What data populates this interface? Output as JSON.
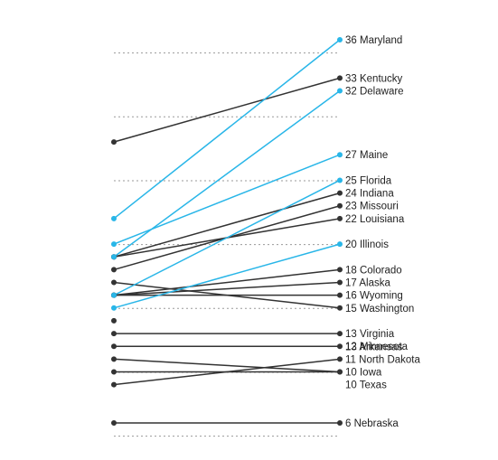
{
  "chart_data": {
    "type": "slope",
    "title": "",
    "xlabel": "",
    "ylabel": "",
    "ylim": [
      5,
      37
    ],
    "grid": {
      "style": "dotted",
      "horizontal": true
    },
    "series": [
      {
        "name": "Maryland",
        "start": 22,
        "end": 36,
        "color": "#29b6e8",
        "label": "36 Maryland"
      },
      {
        "name": "Kentucky",
        "start": 28,
        "end": 33,
        "color": "#333333",
        "label": "33 Kentucky"
      },
      {
        "name": "Delaware",
        "start": 19,
        "end": 32,
        "color": "#29b6e8",
        "label": "32 Delaware"
      },
      {
        "name": "Maine",
        "start": 20,
        "end": 27,
        "color": "#29b6e8",
        "label": "27 Maine"
      },
      {
        "name": "Florida",
        "start": 16,
        "end": 25,
        "color": "#29b6e8",
        "label": "25 Florida"
      },
      {
        "name": "Indiana",
        "start": 19,
        "end": 24,
        "color": "#333333",
        "label": "24 Indiana"
      },
      {
        "name": "Missouri",
        "start": 18,
        "end": 23,
        "color": "#333333",
        "label": "23 Missouri"
      },
      {
        "name": "Louisiana",
        "start": 19,
        "end": 22,
        "color": "#333333",
        "label": "22 Louisiana"
      },
      {
        "name": "Illinois",
        "start": 15,
        "end": 20,
        "color": "#29b6e8",
        "label": "20 Illinois"
      },
      {
        "name": "Colorado",
        "start": 16,
        "end": 18,
        "color": "#333333",
        "label": "18 Colorado"
      },
      {
        "name": "Alaska",
        "start": 16,
        "end": 17,
        "color": "#333333",
        "label": "17 Alaska"
      },
      {
        "name": "Wyoming",
        "start": 16,
        "end": 16,
        "color": "#333333",
        "label": "16 Wyoming"
      },
      {
        "name": "Washington",
        "start": 17,
        "end": 15,
        "color": "#333333",
        "label": "15 Washington"
      },
      {
        "name": "Virginia",
        "start": null,
        "end": 13,
        "color": "#333333",
        "label": "13 Virginia"
      },
      {
        "name": "Arkansas",
        "start": 13,
        "end": 13,
        "color": "#333333",
        "label": "13 Arkansas"
      },
      {
        "name": "Minnesota",
        "start": 12,
        "end": 12,
        "color": "#333333",
        "label": "12 Minnesota"
      },
      {
        "name": "North Dakota",
        "start": 9,
        "end": 11,
        "color": "#333333",
        "label": "11 North Dakota"
      },
      {
        "name": "Iowa",
        "start": 10,
        "end": 10,
        "color": "#333333",
        "label": "10 Iowa"
      },
      {
        "name": "Texas",
        "start": 11,
        "end": 10,
        "color": "#333333",
        "label": "10 Texas"
      },
      {
        "name": "Nebraska",
        "start": 6,
        "end": 6,
        "color": "#333333",
        "label": "6 Nebraska"
      }
    ],
    "extra_points": [
      {
        "side": "start",
        "value": 14,
        "color": "#333333"
      }
    ],
    "gridlines": [
      35,
      30,
      25,
      20,
      15,
      10,
      5
    ]
  }
}
